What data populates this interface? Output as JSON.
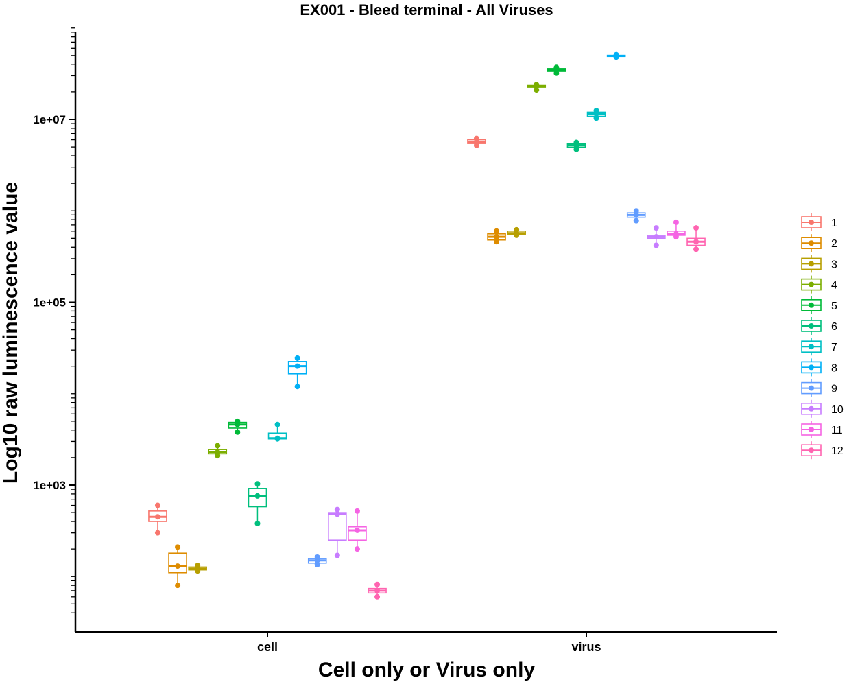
{
  "chart_data": {
    "type": "box",
    "title": "EX001 - Bleed terminal - All Viruses",
    "xlabel": "Cell only or Virus only",
    "ylabel": "Log10 raw luminescence value",
    "y_scale": "log10",
    "ylim": [
      40,
      110000000
    ],
    "y_tick_labels": [
      "1e+03",
      "1e+05",
      "1e+07"
    ],
    "categories": [
      "cell",
      "virus"
    ],
    "legend_position": "right",
    "series": [
      {
        "name": "1",
        "color": "#F8766D",
        "cell": {
          "min": 300,
          "q1": 400,
          "median": 450,
          "q3": 520,
          "max": 600,
          "points": [
            300,
            450,
            600
          ]
        },
        "virus": {
          "min": 5200000,
          "q1": 5450000,
          "median": 5700000,
          "q3": 6000000,
          "max": 6200000,
          "points": [
            5200000,
            5700000,
            6200000
          ]
        }
      },
      {
        "name": "2",
        "color": "#DE8C00",
        "cell": {
          "min": 80,
          "q1": 110,
          "median": 130,
          "q3": 180,
          "max": 210,
          "points": [
            80,
            130,
            210
          ]
        },
        "virus": {
          "min": 460000,
          "q1": 480000,
          "median": 520000,
          "q3": 560000,
          "max": 600000,
          "points": [
            460000,
            520000,
            600000
          ]
        }
      },
      {
        "name": "3",
        "color": "#B79F00",
        "cell": {
          "min": 115,
          "q1": 118,
          "median": 122,
          "q3": 127,
          "max": 132,
          "points": [
            115,
            122,
            132
          ]
        },
        "virus": {
          "min": 540000,
          "q1": 550000,
          "median": 570000,
          "q3": 600000,
          "max": 620000,
          "points": [
            540000,
            570000,
            620000
          ]
        }
      },
      {
        "name": "4",
        "color": "#7CAE00",
        "cell": {
          "min": 2100,
          "q1": 2200,
          "median": 2300,
          "q3": 2450,
          "max": 2700,
          "points": [
            2100,
            2300,
            2700
          ]
        },
        "virus": {
          "min": 21000000,
          "q1": 22500000,
          "median": 23000000,
          "q3": 23500000,
          "max": 24000000,
          "points": [
            21000000,
            23000000,
            24000000
          ]
        }
      },
      {
        "name": "5",
        "color": "#00BA38",
        "cell": {
          "min": 3800,
          "q1": 4200,
          "median": 4600,
          "q3": 4850,
          "max": 5000,
          "points": [
            3800,
            4600,
            5000
          ]
        },
        "virus": {
          "min": 32000000,
          "q1": 33500000,
          "median": 35000000,
          "q3": 36000000,
          "max": 37000000,
          "points": [
            32000000,
            35000000,
            37000000
          ]
        }
      },
      {
        "name": "6",
        "color": "#00BF7D",
        "cell": {
          "min": 380,
          "q1": 580,
          "median": 760,
          "q3": 920,
          "max": 1030,
          "points": [
            380,
            760,
            1030
          ]
        },
        "virus": {
          "min": 4700000,
          "q1": 4950000,
          "median": 5200000,
          "q3": 5400000,
          "max": 5600000,
          "points": [
            4700000,
            5200000,
            5600000
          ]
        }
      },
      {
        "name": "7",
        "color": "#00BFC4",
        "cell": {
          "min": 3200,
          "q1": 3200,
          "median": 3250,
          "q3": 3700,
          "max": 4600,
          "points": [
            3200,
            3250,
            4600
          ]
        },
        "virus": {
          "min": 10300000,
          "q1": 10800000,
          "median": 11500000,
          "q3": 12000000,
          "max": 12500000,
          "points": [
            10300000,
            11500000,
            12500000
          ]
        }
      },
      {
        "name": "8",
        "color": "#00B0F6",
        "cell": {
          "min": 12000,
          "q1": 16500,
          "median": 20000,
          "q3": 22500,
          "max": 24500,
          "points": [
            12000,
            20000,
            24500
          ]
        },
        "virus": {
          "min": 48000000,
          "q1": 48800000,
          "median": 49500000,
          "q3": 50200000,
          "max": 51000000,
          "points": [
            48000000,
            49500000,
            51000000
          ]
        }
      },
      {
        "name": "9",
        "color": "#619CFF",
        "cell": {
          "min": 135,
          "q1": 140,
          "median": 150,
          "q3": 157,
          "max": 163,
          "points": [
            135,
            150,
            163
          ]
        },
        "virus": {
          "min": 780000,
          "q1": 850000,
          "median": 900000,
          "q3": 950000,
          "max": 1000000,
          "points": [
            780000,
            900000,
            1000000
          ]
        }
      },
      {
        "name": "10",
        "color": "#C77CFF",
        "cell": {
          "min": 170,
          "q1": 250,
          "median": 480,
          "q3": 500,
          "max": 540,
          "points": [
            170,
            480,
            540
          ]
        },
        "virus": {
          "min": 420000,
          "q1": 500000,
          "median": 520000,
          "q3": 540000,
          "max": 650000,
          "points": [
            420000,
            520000,
            650000
          ]
        }
      },
      {
        "name": "11",
        "color": "#F564E3",
        "cell": {
          "min": 200,
          "q1": 250,
          "median": 320,
          "q3": 350,
          "max": 520,
          "points": [
            200,
            320,
            520
          ]
        },
        "virus": {
          "min": 520000,
          "q1": 540000,
          "median": 560000,
          "q3": 600000,
          "max": 750000,
          "points": [
            520000,
            560000,
            750000
          ]
        }
      },
      {
        "name": "12",
        "color": "#FF64B0",
        "cell": {
          "min": 60,
          "q1": 66,
          "median": 70,
          "q3": 74,
          "max": 82,
          "points": [
            60,
            70,
            82
          ]
        },
        "virus": {
          "min": 380000,
          "q1": 420000,
          "median": 460000,
          "q3": 500000,
          "max": 650000,
          "points": [
            380000,
            460000,
            650000
          ]
        }
      }
    ]
  }
}
